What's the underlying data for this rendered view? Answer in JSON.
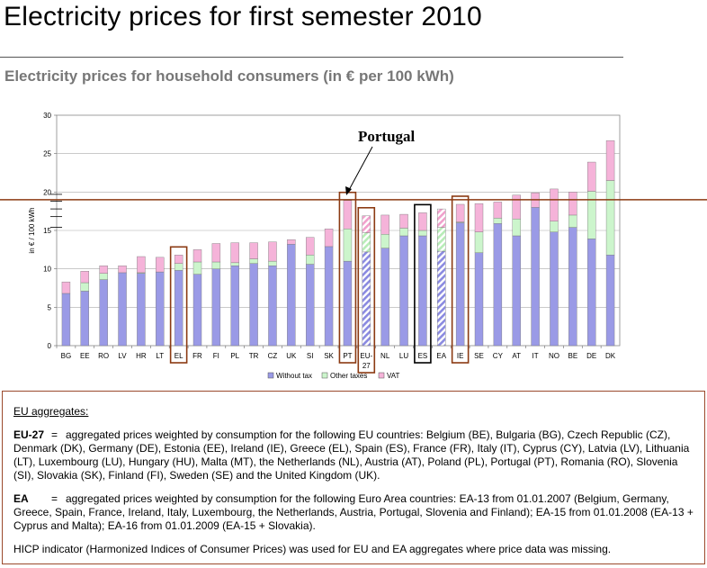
{
  "page": {
    "title": "Electricity prices for first semester 2010",
    "subtitle": "Electricity prices for household consumers (in € per 100 kWh)"
  },
  "chart_data": {
    "type": "bar",
    "stacked": true,
    "ylabel": "in € / 100 kWh",
    "ylim": [
      0,
      30
    ],
    "yticks": [
      0,
      5,
      10,
      15,
      20,
      25,
      30
    ],
    "categories": [
      "BG",
      "EE",
      "RO",
      "LV",
      "HR",
      "LT",
      "EL",
      "FR",
      "FI",
      "PL",
      "TR",
      "CZ",
      "UK",
      "SI",
      "SK",
      "PT",
      "EU-27",
      "NL",
      "LU",
      "ES",
      "EA",
      "IE",
      "SE",
      "CY",
      "AT",
      "IT",
      "NO",
      "BE",
      "DE",
      "DK"
    ],
    "series": [
      {
        "name": "Without tax",
        "color": "#9a9ae6",
        "values": [
          6.8,
          7.1,
          8.6,
          9.5,
          9.4,
          9.6,
          9.8,
          9.3,
          10.0,
          10.4,
          10.7,
          10.4,
          13.2,
          10.6,
          12.9,
          11.0,
          12.2,
          12.7,
          14.3,
          14.3,
          12.3,
          16.0,
          12.1,
          15.9,
          14.3,
          18.0,
          14.8,
          15.4,
          13.9,
          11.8
        ]
      },
      {
        "name": "Other taxes",
        "color": "#ccf5cc",
        "values": [
          0,
          1.1,
          0.8,
          0,
          0.1,
          0,
          0.9,
          1.6,
          0.9,
          0.4,
          0.6,
          0.6,
          0,
          1.2,
          0,
          4.2,
          2.5,
          1.8,
          1.0,
          0.7,
          3.1,
          0.1,
          2.7,
          0.7,
          2.2,
          0,
          1.4,
          1.6,
          6.2,
          9.7
        ]
      },
      {
        "name": "VAT",
        "color": "#f5b3d9",
        "values": [
          1.5,
          1.5,
          1.0,
          0.9,
          2.1,
          1.9,
          1.1,
          1.6,
          2.4,
          2.6,
          2.1,
          2.5,
          0.6,
          2.3,
          2.3,
          3.7,
          2.2,
          2.5,
          1.8,
          2.3,
          2.4,
          2.3,
          3.7,
          2.1,
          3.1,
          1.9,
          4.2,
          3.0,
          3.8,
          5.2
        ]
      }
    ],
    "hatched": [
      "EU-27",
      "EA"
    ],
    "highlighted": [
      "EL",
      "PT",
      "EU-27",
      "ES",
      "IE"
    ],
    "reference_line": 19,
    "annotation": "Portugal",
    "annotation_target": "PT",
    "legend_position": "bottom"
  },
  "notes": {
    "heading": "EU aggregates:",
    "eu27_term": "EU-27",
    "eu27_eq": "=",
    "eu27_text": "aggregated prices weighted by consumption for the following EU countries: Belgium (BE), Bulgaria (BG), Czech Republic (CZ), Denmark (DK), Germany (DE), Estonia (EE), Ireland (IE), Greece (EL), Spain (ES), France (FR), Italy (IT), Cyprus (CY), Latvia (LV), Lithuania (LT), Luxembourg (LU), Hungary (HU), Malta (MT), the Netherlands (NL), Austria (AT), Poland (PL), Portugal (PT), Romania (RO), Slovenia (SI), Slovakia (SK), Finland (FI), Sweden (SE) and the United Kingdom (UK).",
    "ea_term": "EA",
    "ea_eq": "=",
    "ea_text": "aggregated prices weighted by consumption for the following Euro Area countries: EA-13 from 01.01.2007 (Belgium, Germany, Greece, Spain, France, Ireland, Italy, Luxembourg, the Netherlands, Austria, Portugal, Slovenia and Finland); EA-15 from 01.01.2008 (EA-13 + Cyprus and Malta); EA-16 from 01.01.2009 (EA-15 + Slovakia).",
    "hicp_text": "HICP indicator (Harmonized Indices of Consumer Prices) was used for EU and EA aggregates where price data was missing."
  }
}
